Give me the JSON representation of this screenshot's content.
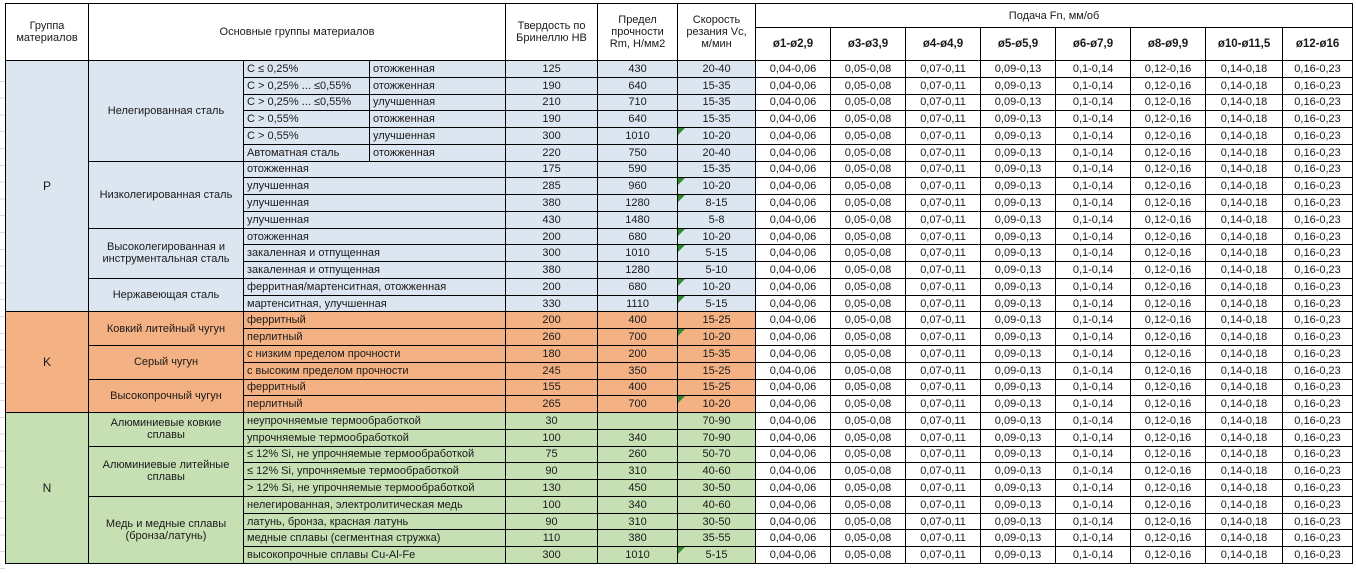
{
  "colors": {
    "steel_section": "#DCE6F1",
    "cast_iron_section": "#F4B183",
    "nonferrous_section": "#C6E0B4",
    "note_marker": "#2E8B2E",
    "border": "#000000"
  },
  "table": {
    "headers": {
      "group": "Группа материалов",
      "main_groups": "Основные группы материалов",
      "hardness": "Твердость по Бринеллю HB",
      "strength": "Предел прочности Rm, Н/мм2",
      "speed": "Скорость резания Vc, м/мин",
      "feed": "Подача Fn, мм/об",
      "feed_columns": [
        "ø1-ø2,9",
        "ø3-ø3,9",
        "ø4-ø4,9",
        "ø5-ø5,9",
        "ø6-ø7,9",
        "ø8-ø9,9",
        "ø10-ø11,5",
        "ø12-ø16"
      ]
    },
    "feed_values": [
      "0,04-0,06",
      "0,05-0,08",
      "0,07-0,11",
      "0,09-0,13",
      "0,1-0,14",
      "0,12-0,16",
      "0,14-0,18",
      "0,16-0,23"
    ],
    "sections": [
      {
        "group": "P",
        "color": "#DCE6F1",
        "subgroups": [
          {
            "name": "Нелегированная сталь",
            "rows": [
              {
                "cond": "С ≤ 0,25%",
                "state": "отожженная",
                "hb": "125",
                "rm": "430",
                "vc": "20-40",
                "note": false
              },
              {
                "cond": "С > 0,25% ... ≤0,55%",
                "state": "отожженная",
                "hb": "190",
                "rm": "640",
                "vc": "15-35",
                "note": false
              },
              {
                "cond": "С > 0,25% ... ≤0,55%",
                "state": "улучшенная",
                "hb": "210",
                "rm": "710",
                "vc": "15-35",
                "note": false
              },
              {
                "cond": "С > 0,55%",
                "state": "отожженная",
                "hb": "190",
                "rm": "640",
                "vc": "15-35",
                "note": false
              },
              {
                "cond": "С > 0,55%",
                "state": "улучшенная",
                "hb": "300",
                "rm": "1010",
                "vc": "10-20",
                "note": true
              },
              {
                "cond": "Автоматная сталь",
                "state": "отожженная",
                "hb": "220",
                "rm": "750",
                "vc": "20-40",
                "note": false
              }
            ]
          },
          {
            "name": "Низколегированная сталь",
            "rows": [
              {
                "state": "отожженная",
                "hb": "175",
                "rm": "590",
                "vc": "15-35",
                "note": false
              },
              {
                "state": "улучшенная",
                "hb": "285",
                "rm": "960",
                "vc": "10-20",
                "note": true
              },
              {
                "state": "улучшенная",
                "hb": "380",
                "rm": "1280",
                "vc": "8-15",
                "note": true
              },
              {
                "state": "улучшенная",
                "hb": "430",
                "rm": "1480",
                "vc": "5-8",
                "note": false
              }
            ]
          },
          {
            "name": "Высоколегированная и инструментальная сталь",
            "rows": [
              {
                "state": "отожженная",
                "hb": "200",
                "rm": "680",
                "vc": "10-20",
                "note": true
              },
              {
                "state": "закаленная и отпущенная",
                "hb": "300",
                "rm": "1010",
                "vc": "5-15",
                "note": true
              },
              {
                "state": "закаленная и отпущенная",
                "hb": "380",
                "rm": "1280",
                "vc": "5-10",
                "note": false
              }
            ]
          },
          {
            "name": "Нержавеющая сталь",
            "rows": [
              {
                "state": "ферритная/мартенситная, отожженная",
                "hb": "200",
                "rm": "680",
                "vc": "10-20",
                "note": true
              },
              {
                "state": "мартенситная, улучшенная",
                "hb": "330",
                "rm": "1110",
                "vc": "5-15",
                "note": true
              }
            ]
          }
        ]
      },
      {
        "group": "K",
        "color": "#F4B183",
        "subgroups": [
          {
            "name": "Ковкий литейный чугун",
            "rows": [
              {
                "state": "ферритный",
                "hb": "200",
                "rm": "400",
                "vc": "15-25",
                "note": false
              },
              {
                "state": "перлитный",
                "hb": "260",
                "rm": "700",
                "vc": "10-20",
                "note": true
              }
            ]
          },
          {
            "name": "Серый чугун",
            "rows": [
              {
                "state": "с низким пределом прочности",
                "hb": "180",
                "rm": "200",
                "vc": "15-35",
                "note": false
              },
              {
                "state": "с высоким пределом прочности",
                "hb": "245",
                "rm": "350",
                "vc": "15-25",
                "note": false
              }
            ]
          },
          {
            "name": "Высокопрочный чугун",
            "rows": [
              {
                "state": "ферритный",
                "hb": "155",
                "rm": "400",
                "vc": "15-25",
                "note": false
              },
              {
                "state": "перлитный",
                "hb": "265",
                "rm": "700",
                "vc": "10-20",
                "note": true
              }
            ]
          }
        ]
      },
      {
        "group": "N",
        "color": "#C6E0B4",
        "subgroups": [
          {
            "name": "Алюминиевые ковкие сплавы",
            "rows": [
              {
                "state": "неупрочняемые термообработкой",
                "hb": "30",
                "rm": "",
                "vc": "70-90",
                "note": false
              },
              {
                "state": "упрочняемые термообработкой",
                "hb": "100",
                "rm": "340",
                "vc": "70-90",
                "note": false
              }
            ]
          },
          {
            "name": "Алюминиевые литейные сплавы",
            "rows": [
              {
                "state": "≤ 12% Si, не упрочняемые термообработкой",
                "hb": "75",
                "rm": "260",
                "vc": "50-70",
                "note": false
              },
              {
                "state": "≤ 12% Si, упрочняемые термообработкой",
                "hb": "90",
                "rm": "310",
                "vc": "40-60",
                "note": false
              },
              {
                "state": "> 12% Si, не упрочняемые термообработкой",
                "hb": "130",
                "rm": "450",
                "vc": "30-50",
                "note": false
              }
            ]
          },
          {
            "name": "Медь и медные сплавы (бронза/латунь)",
            "rows": [
              {
                "state": "нелегированная, электролитическая медь",
                "hb": "100",
                "rm": "340",
                "vc": "40-60",
                "note": false
              },
              {
                "state": "латунь, бронза, красная латунь",
                "hb": "90",
                "rm": "310",
                "vc": "30-50",
                "note": false
              },
              {
                "state": "медные сплавы (сегментная стружка)",
                "hb": "110",
                "rm": "380",
                "vc": "35-55",
                "note": false
              },
              {
                "state": "высокопрочные сплавы Cu-Al-Fe",
                "hb": "300",
                "rm": "1010",
                "vc": "5-15",
                "note": true
              }
            ]
          }
        ]
      }
    ]
  }
}
